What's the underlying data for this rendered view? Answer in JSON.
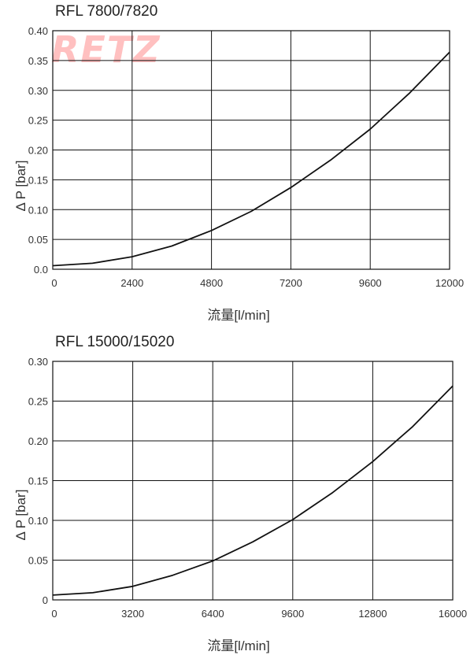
{
  "watermark": {
    "text": "RETZ",
    "color": "#ffc0c0"
  },
  "chart_data": [
    {
      "type": "line",
      "title": "RFL 7800/7820",
      "xlabel": "流量[l/min]",
      "ylabel": "Δ P [bar]",
      "xlim": [
        0,
        12000
      ],
      "ylim": [
        0,
        0.4
      ],
      "x_ticks": [
        0,
        2400,
        4800,
        7200,
        9600,
        12000
      ],
      "x_tick_labels": [
        "0",
        "2400",
        "4800",
        "7200",
        "9600",
        "12000"
      ],
      "y_ticks": [
        0,
        0.05,
        0.1,
        0.15,
        0.2,
        0.25,
        0.3,
        0.35,
        0.4
      ],
      "y_tick_labels": [
        "0.0",
        "0.05",
        "0.10",
        "0.15",
        "0.20",
        "0.25",
        "0.30",
        "0.35",
        "0.40"
      ],
      "grid": true,
      "legend": null,
      "series": [
        {
          "name": "ΔP",
          "x": [
            0,
            1200,
            2400,
            3600,
            4800,
            6000,
            7200,
            8400,
            9600,
            10800,
            12000
          ],
          "values": [
            0.006,
            0.01,
            0.021,
            0.039,
            0.065,
            0.097,
            0.137,
            0.183,
            0.235,
            0.296,
            0.364
          ]
        }
      ]
    },
    {
      "type": "line",
      "title": "RFL 15000/15020",
      "xlabel": "流量[l/min]",
      "ylabel": "Δ P [bar]",
      "xlim": [
        0,
        16000
      ],
      "ylim": [
        0,
        0.3
      ],
      "x_ticks": [
        0,
        3200,
        6400,
        9600,
        12800,
        16000
      ],
      "x_tick_labels": [
        "0",
        "3200",
        "6400",
        "9600",
        "12800",
        "16000"
      ],
      "y_ticks": [
        0,
        0.05,
        0.1,
        0.15,
        0.2,
        0.25,
        0.3
      ],
      "y_tick_labels": [
        "0",
        "0.05",
        "0.10",
        "0.15",
        "0.20",
        "0.25",
        "0.30"
      ],
      "grid": true,
      "legend": null,
      "series": [
        {
          "name": "ΔP",
          "x": [
            0,
            1600,
            3200,
            4800,
            6400,
            8000,
            9600,
            11200,
            12800,
            14400,
            16000
          ],
          "values": [
            0.006,
            0.009,
            0.017,
            0.031,
            0.049,
            0.073,
            0.101,
            0.135,
            0.174,
            0.218,
            0.269
          ]
        }
      ]
    }
  ]
}
